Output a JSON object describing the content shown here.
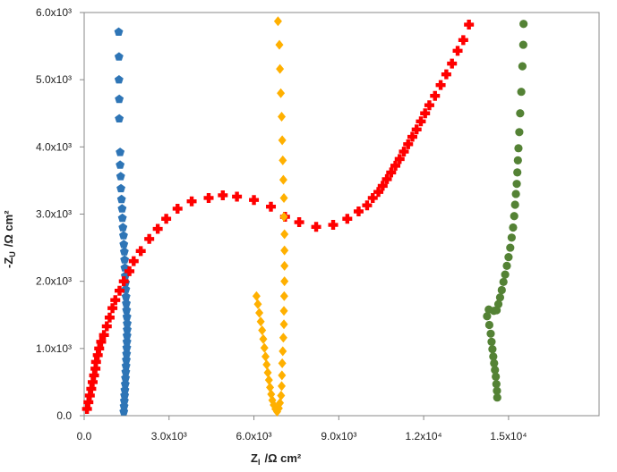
{
  "chart_data": {
    "type": "scatter",
    "title": "",
    "xlabel": "Z",
    "xlabel_sub": "I",
    "xlabel_unit": "/Ω cm²",
    "ylabel": "-Z",
    "ylabel_sub": "U",
    "ylabel_unit": "/Ω cm²",
    "xlim": [
      0,
      18200
    ],
    "ylim": [
      0,
      6000
    ],
    "grid": false,
    "legend": "none",
    "x_ticks": [
      {
        "value": 0,
        "label": "0.0"
      },
      {
        "value": 3000,
        "label": "3.0x10³"
      },
      {
        "value": 6000,
        "label": "6.0x10³"
      },
      {
        "value": 9000,
        "label": "9.0x10³"
      },
      {
        "value": 12000,
        "label": "1.2x10⁴"
      },
      {
        "value": 15000,
        "label": "1.5x10⁴"
      }
    ],
    "y_ticks": [
      {
        "value": 0,
        "label": "0.0"
      },
      {
        "value": 1000,
        "label": "1.0x10³"
      },
      {
        "value": 2000,
        "label": "2.0x10³"
      },
      {
        "value": 3000,
        "label": "3.0x10³"
      },
      {
        "value": 4000,
        "label": "4.0x10³"
      },
      {
        "value": 5000,
        "label": "5.0x10³"
      },
      {
        "value": 6000,
        "label": "6.0x10³"
      }
    ],
    "series": [
      {
        "marker": "pentagon",
        "color": "#2e75b6",
        "points": [
          [
            1400,
            60
          ],
          [
            1410,
            140
          ],
          [
            1420,
            220
          ],
          [
            1430,
            300
          ],
          [
            1440,
            380
          ],
          [
            1450,
            470
          ],
          [
            1460,
            560
          ],
          [
            1470,
            650
          ],
          [
            1480,
            740
          ],
          [
            1490,
            830
          ],
          [
            1500,
            920
          ],
          [
            1505,
            1010
          ],
          [
            1510,
            1100
          ],
          [
            1515,
            1190
          ],
          [
            1520,
            1280
          ],
          [
            1520,
            1370
          ],
          [
            1510,
            1470
          ],
          [
            1500,
            1570
          ],
          [
            1490,
            1670
          ],
          [
            1480,
            1770
          ],
          [
            1470,
            1880
          ],
          [
            1460,
            1980
          ],
          [
            1450,
            2080
          ],
          [
            1440,
            2200
          ],
          [
            1430,
            2320
          ],
          [
            1420,
            2440
          ],
          [
            1400,
            2550
          ],
          [
            1390,
            2680
          ],
          [
            1370,
            2800
          ],
          [
            1350,
            2940
          ],
          [
            1340,
            3080
          ],
          [
            1320,
            3220
          ],
          [
            1300,
            3380
          ],
          [
            1290,
            3560
          ],
          [
            1270,
            3730
          ],
          [
            1270,
            3920
          ],
          [
            1240,
            4420
          ],
          [
            1240,
            4710
          ],
          [
            1230,
            5000
          ],
          [
            1230,
            5340
          ],
          [
            1220,
            5710
          ]
        ]
      },
      {
        "marker": "plus",
        "color": "#ff0000",
        "points": [
          [
            100,
            100
          ],
          [
            150,
            200
          ],
          [
            200,
            300
          ],
          [
            250,
            400
          ],
          [
            300,
            500
          ],
          [
            350,
            600
          ],
          [
            400,
            700
          ],
          [
            420,
            800
          ],
          [
            480,
            900
          ],
          [
            530,
            1000
          ],
          [
            600,
            1100
          ],
          [
            700,
            1200
          ],
          [
            800,
            1330
          ],
          [
            900,
            1460
          ],
          [
            1000,
            1600
          ],
          [
            1100,
            1720
          ],
          [
            1250,
            1860
          ],
          [
            1400,
            2000
          ],
          [
            1600,
            2150
          ],
          [
            1750,
            2300
          ],
          [
            2000,
            2450
          ],
          [
            2300,
            2630
          ],
          [
            2600,
            2780
          ],
          [
            2900,
            2930
          ],
          [
            3300,
            3080
          ],
          [
            3800,
            3190
          ],
          [
            4400,
            3240
          ],
          [
            4900,
            3280
          ],
          [
            5400,
            3260
          ],
          [
            6000,
            3210
          ],
          [
            6600,
            3110
          ],
          [
            7100,
            2960
          ],
          [
            7600,
            2880
          ],
          [
            8200,
            2810
          ],
          [
            8800,
            2840
          ],
          [
            9300,
            2930
          ],
          [
            9700,
            3040
          ],
          [
            10000,
            3130
          ],
          [
            10200,
            3240
          ],
          [
            10400,
            3330
          ],
          [
            10550,
            3420
          ],
          [
            10700,
            3520
          ],
          [
            10850,
            3620
          ],
          [
            11000,
            3720
          ],
          [
            11150,
            3820
          ],
          [
            11300,
            3930
          ],
          [
            11450,
            4040
          ],
          [
            11600,
            4150
          ],
          [
            11750,
            4260
          ],
          [
            11900,
            4380
          ],
          [
            12050,
            4500
          ],
          [
            12200,
            4620
          ],
          [
            12400,
            4760
          ],
          [
            12600,
            4920
          ],
          [
            12800,
            5080
          ],
          [
            13000,
            5240
          ],
          [
            13200,
            5430
          ],
          [
            13400,
            5590
          ],
          [
            13600,
            5820
          ]
        ]
      },
      {
        "marker": "diamond",
        "color": "#ffb000",
        "points": [
          [
            6850,
            5870
          ],
          [
            6900,
            5520
          ],
          [
            6920,
            5160
          ],
          [
            6950,
            4800
          ],
          [
            6980,
            4450
          ],
          [
            7000,
            4100
          ],
          [
            7020,
            3800
          ],
          [
            7040,
            3510
          ],
          [
            7060,
            3240
          ],
          [
            7060,
            2960
          ],
          [
            7080,
            2700
          ],
          [
            7080,
            2460
          ],
          [
            7080,
            2230
          ],
          [
            7080,
            2000
          ],
          [
            7070,
            1780
          ],
          [
            7060,
            1560
          ],
          [
            7060,
            1360
          ],
          [
            7040,
            1160
          ],
          [
            7020,
            960
          ],
          [
            7000,
            780
          ],
          [
            6990,
            600
          ],
          [
            6980,
            440
          ],
          [
            6960,
            300
          ],
          [
            6920,
            190
          ],
          [
            6880,
            110
          ],
          [
            6820,
            60
          ],
          [
            6760,
            100
          ],
          [
            6700,
            160
          ],
          [
            6650,
            230
          ],
          [
            6610,
            320
          ],
          [
            6570,
            420
          ],
          [
            6530,
            530
          ],
          [
            6490,
            640
          ],
          [
            6450,
            760
          ],
          [
            6410,
            880
          ],
          [
            6370,
            1010
          ],
          [
            6330,
            1140
          ],
          [
            6290,
            1270
          ],
          [
            6240,
            1400
          ],
          [
            6190,
            1530
          ],
          [
            6140,
            1660
          ],
          [
            6090,
            1780
          ]
        ]
      },
      {
        "marker": "circle",
        "color": "#548235",
        "points": [
          [
            15530,
            5830
          ],
          [
            15520,
            5520
          ],
          [
            15490,
            5200
          ],
          [
            15450,
            4820
          ],
          [
            15410,
            4500
          ],
          [
            15380,
            4220
          ],
          [
            15350,
            3980
          ],
          [
            15330,
            3800
          ],
          [
            15310,
            3620
          ],
          [
            15290,
            3450
          ],
          [
            15260,
            3300
          ],
          [
            15230,
            3140
          ],
          [
            15200,
            2970
          ],
          [
            15160,
            2800
          ],
          [
            15110,
            2650
          ],
          [
            15060,
            2500
          ],
          [
            15000,
            2360
          ],
          [
            14940,
            2230
          ],
          [
            14880,
            2100
          ],
          [
            14820,
            1990
          ],
          [
            14760,
            1870
          ],
          [
            14700,
            1760
          ],
          [
            14640,
            1660
          ],
          [
            14580,
            1570
          ],
          [
            14480,
            1560
          ],
          [
            14300,
            1580
          ],
          [
            14240,
            1480
          ],
          [
            14320,
            1350
          ],
          [
            14370,
            1220
          ],
          [
            14400,
            1100
          ],
          [
            14430,
            990
          ],
          [
            14460,
            880
          ],
          [
            14490,
            780
          ],
          [
            14520,
            680
          ],
          [
            14550,
            580
          ],
          [
            14570,
            470
          ],
          [
            14590,
            370
          ],
          [
            14600,
            270
          ]
        ]
      }
    ]
  }
}
